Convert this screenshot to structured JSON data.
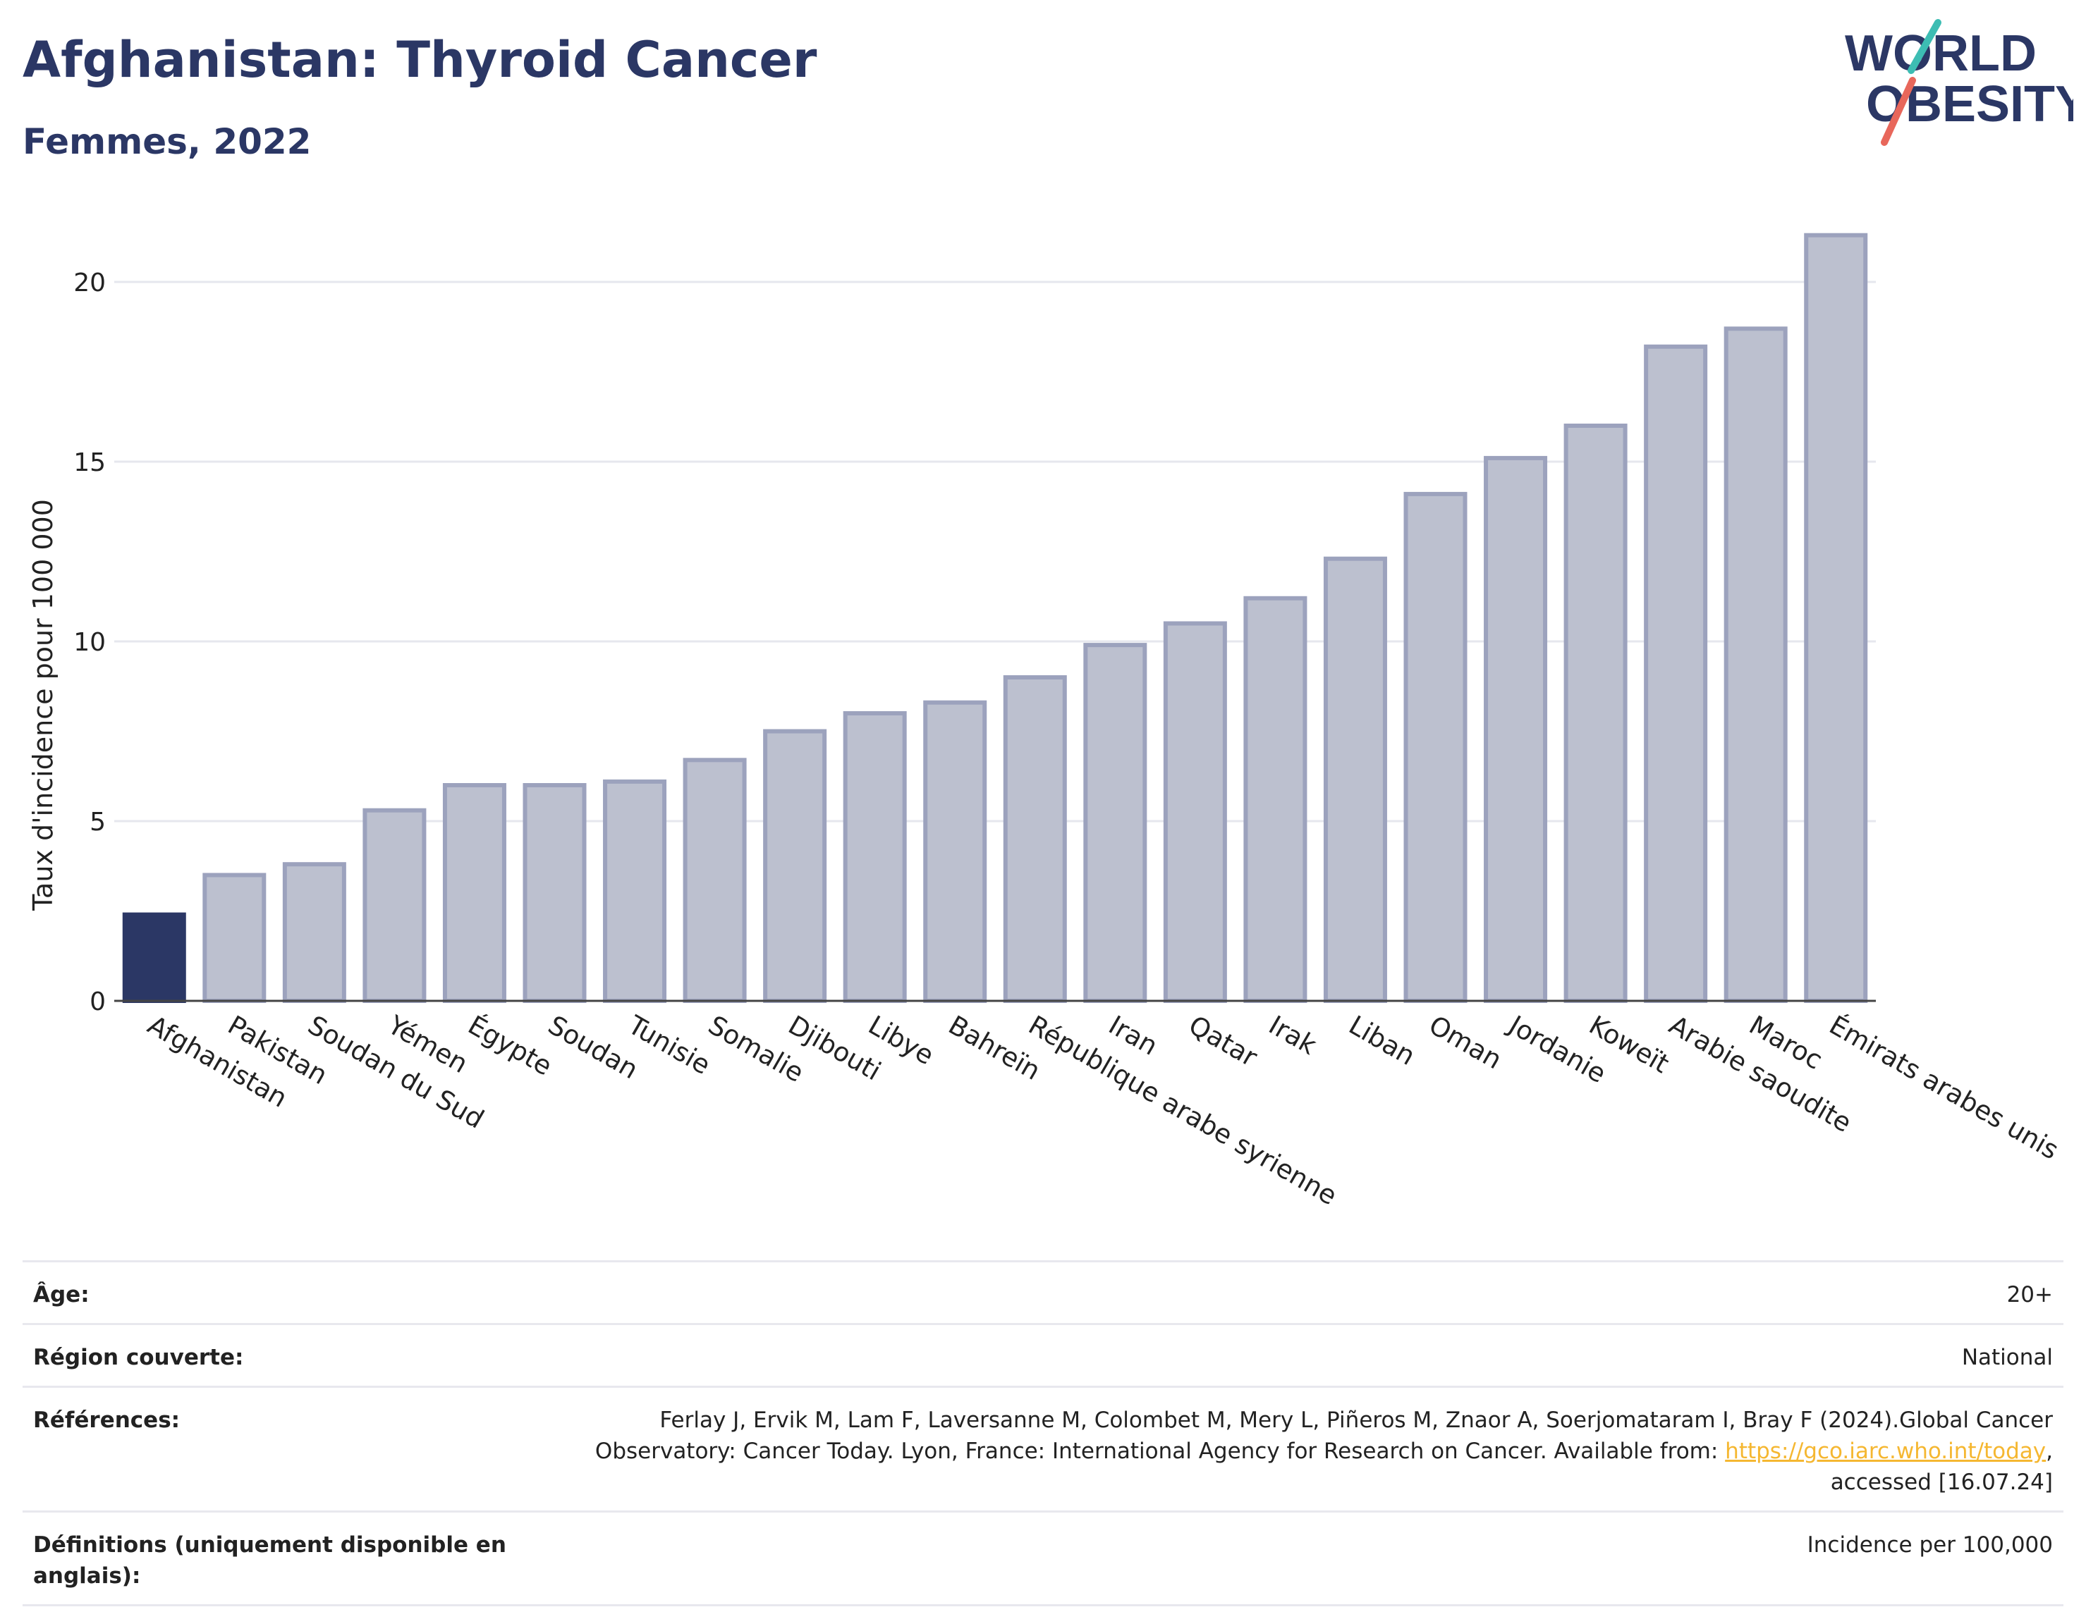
{
  "header": {
    "title": "Afghanistan: Thyroid Cancer",
    "subtitle": "Femmes, 2022"
  },
  "logo": {
    "line1": "WORLD",
    "line2": "OBESITY",
    "accent_teal": "#3dbdb3",
    "accent_red": "#e8675b"
  },
  "chart_data": {
    "type": "bar",
    "ylabel": "Taux d'incidence pour 100 000",
    "ylim": [
      0,
      22
    ],
    "yticks": [
      0,
      5,
      10,
      15,
      20
    ],
    "grid": true,
    "highlight_color": "#2b3765",
    "bar_color": "#bcc0cf",
    "bar_edge_color": "#9ca2bd",
    "categories": [
      "Afghanistan",
      "Pakistan",
      "Soudan du Sud",
      "Yémen",
      "Égypte",
      "Soudan",
      "Tunisie",
      "Somalie",
      "Djibouti",
      "Libye",
      "Bahreïn",
      "République arabe syrienne",
      "Iran",
      "Qatar",
      "Irak",
      "Liban",
      "Oman",
      "Jordanie",
      "Koweït",
      "Arabie saoudite",
      "Maroc",
      "Émirats arabes unis"
    ],
    "values": [
      2.4,
      3.5,
      3.8,
      5.3,
      6.0,
      6.0,
      6.1,
      6.7,
      7.5,
      8.0,
      8.3,
      9.0,
      9.9,
      10.5,
      11.2,
      12.3,
      14.1,
      15.1,
      16.0,
      18.2,
      18.7,
      21.3
    ],
    "highlight": "Afghanistan"
  },
  "info": {
    "age_label": "Âge:",
    "age_value": "20+",
    "region_label": "Région couverte:",
    "region_value": "National",
    "refs_label": "Références:",
    "refs_line1": "Ferlay J, Ervik M, Lam F, Laversanne M, Colombet M, Mery L, Piñeros M, Znaor A, Soerjomataram I, Bray F (2024).Global Cancer",
    "refs_line2_pre": "Observatory: Cancer Today. Lyon, France: International Agency for Research on Cancer. Available from: ",
    "refs_link": "https://gco.iarc.who.int/today",
    "refs_line2_post": ",",
    "refs_line3": "accessed [16.07.24]",
    "defs_label": "Définitions (uniquement disponible en anglais):",
    "defs_value": "Incidence per 100,000"
  }
}
